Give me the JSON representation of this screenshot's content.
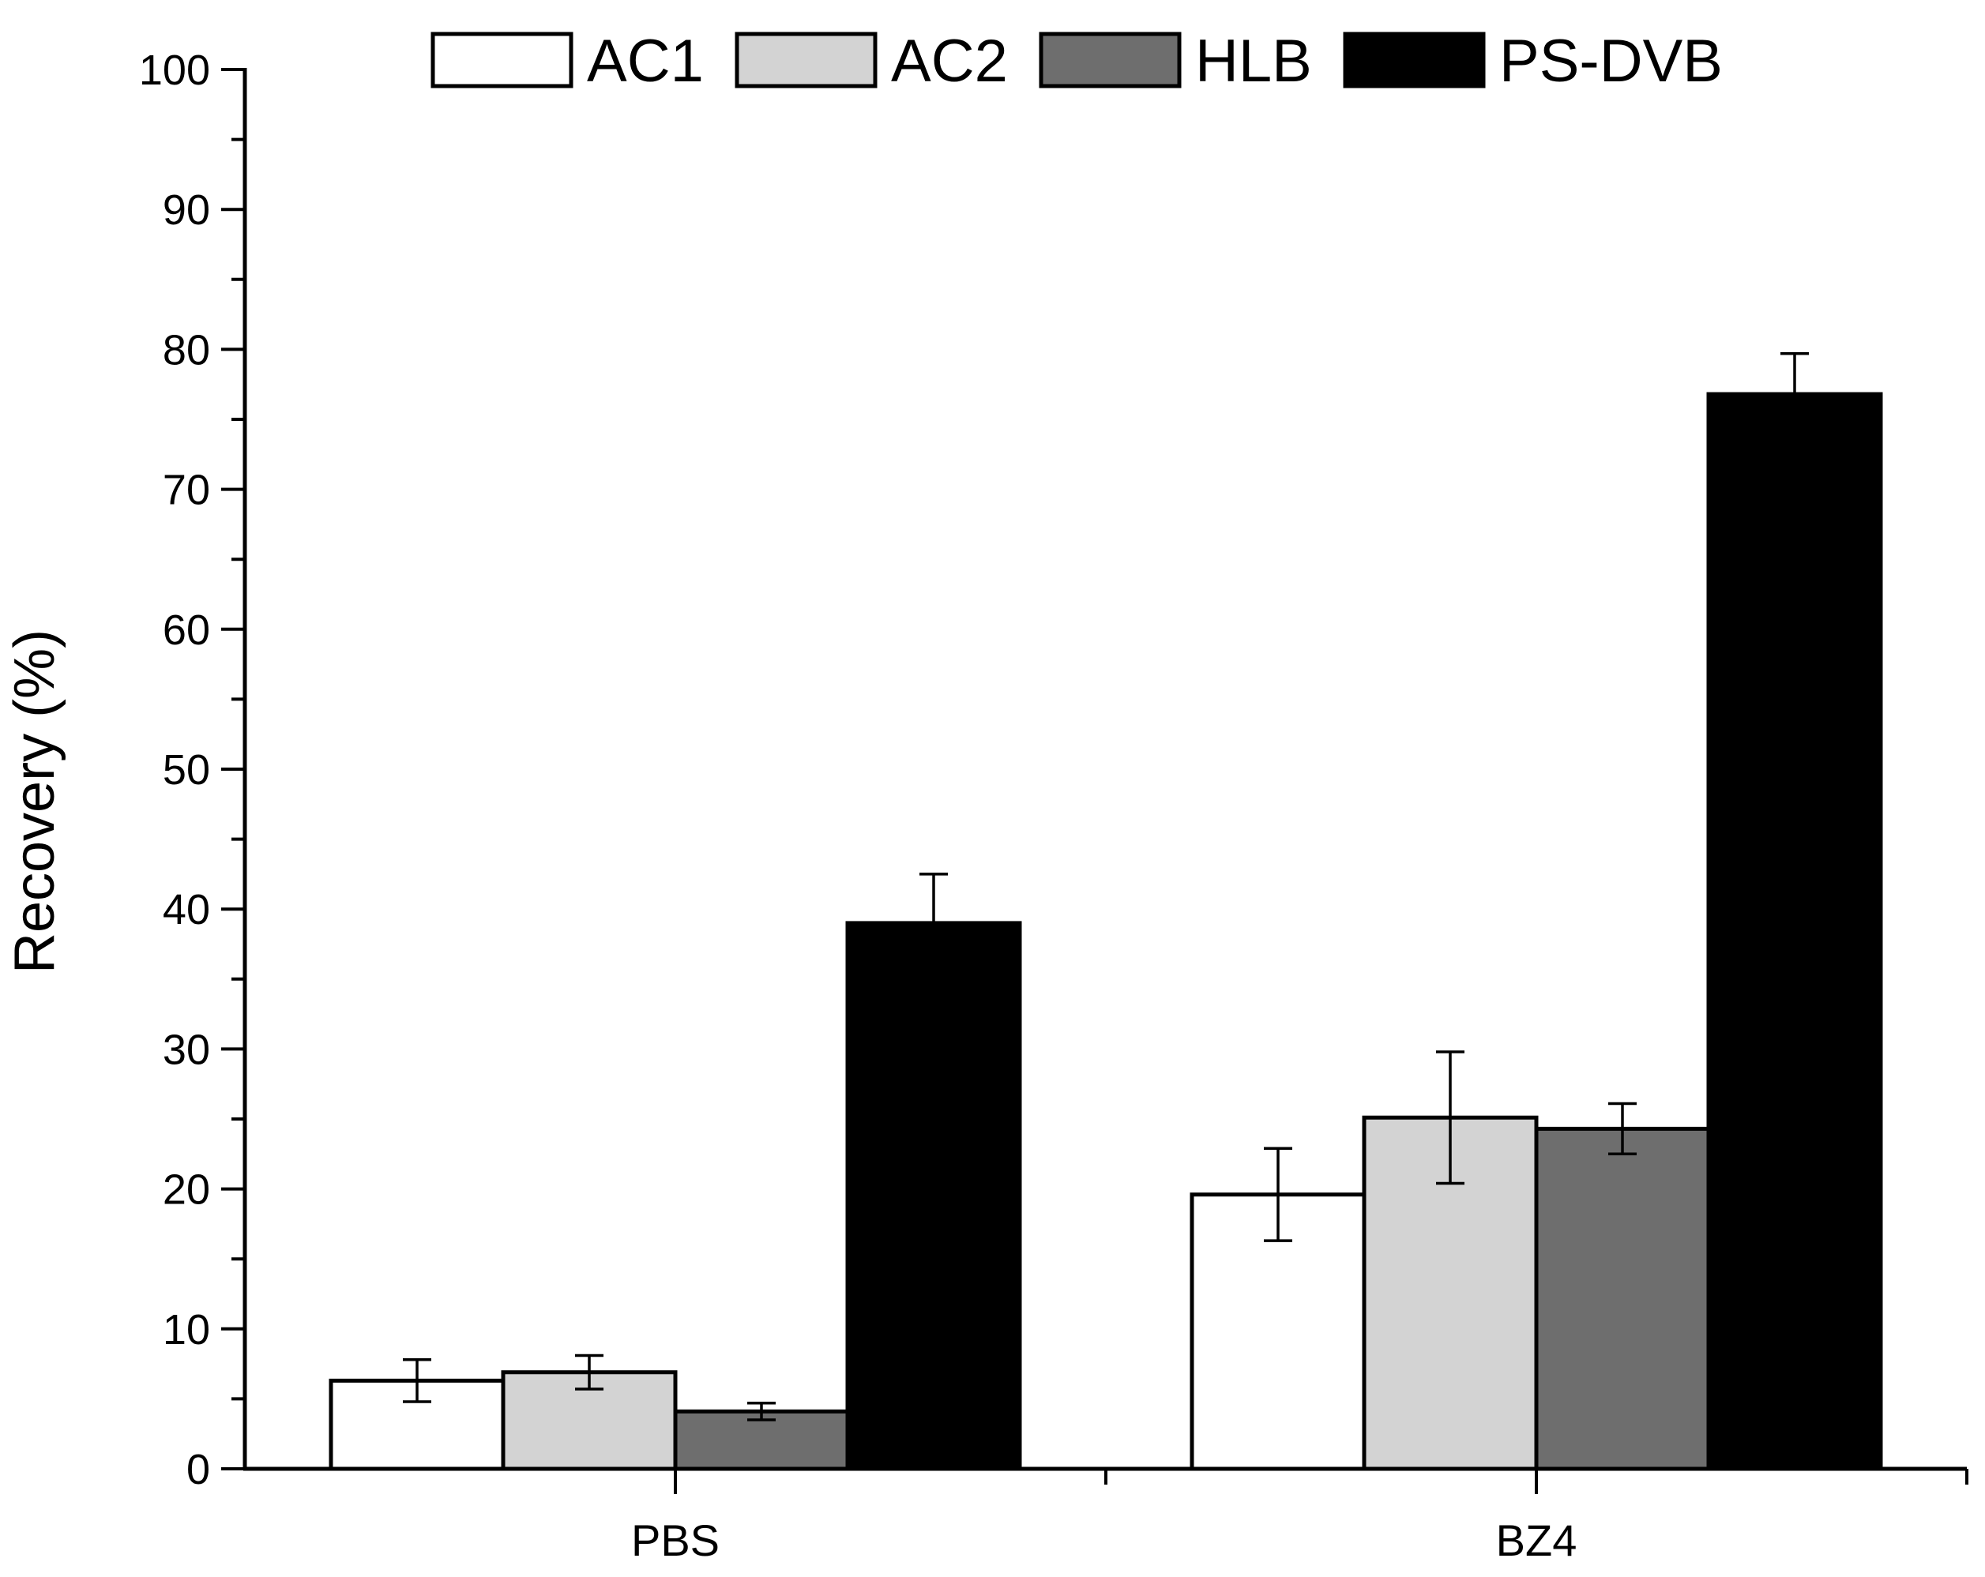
{
  "chart_data": {
    "type": "bar",
    "title": "",
    "xlabel": "",
    "ylabel": "Recovery (%)",
    "ylim": [
      0,
      100
    ],
    "yticks": [
      "0",
      "10",
      "20",
      "30",
      "40",
      "50",
      "60",
      "70",
      "80",
      "90",
      "100"
    ],
    "categories": [
      "PBS",
      "BZ4"
    ],
    "legend_position": "top-center",
    "grid": false,
    "series": [
      {
        "name": "AC1",
        "color": "#ffffff",
        "values": [
          6.3,
          19.6
        ],
        "errors": [
          1.5,
          3.3
        ]
      },
      {
        "name": "AC2",
        "color": "#d3d3d3",
        "values": [
          6.9,
          25.1
        ],
        "errors": [
          1.2,
          4.7
        ]
      },
      {
        "name": "HLB",
        "color": "#6e6e6e",
        "values": [
          4.1,
          24.3
        ],
        "errors": [
          0.6,
          1.8
        ]
      },
      {
        "name": "PS-DVB",
        "color": "#000000",
        "values": [
          39.0,
          76.8
        ],
        "errors": [
          3.5,
          2.9
        ]
      }
    ]
  }
}
